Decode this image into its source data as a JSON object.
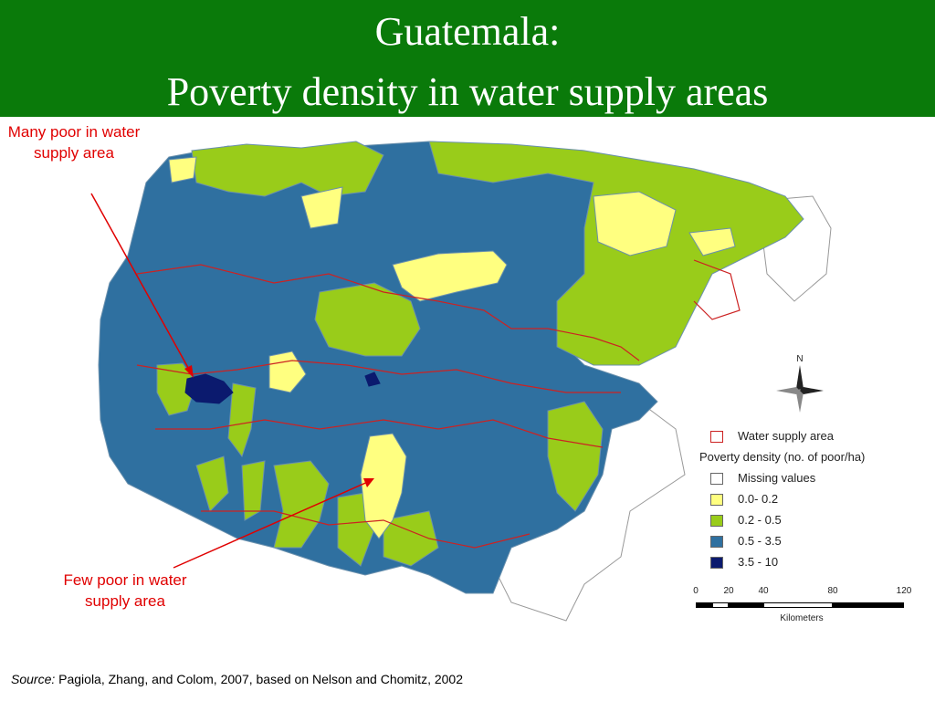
{
  "header": {
    "title_line1": "Guatemala:",
    "title_line2": "Poverty density in water supply areas",
    "background_color": "#0a7a0a"
  },
  "callouts": {
    "many_poor": "Many poor in water supply area",
    "few_poor": "Few poor in water supply area",
    "color": "#e00000"
  },
  "legend": {
    "water_supply_label": "Water supply area",
    "water_supply_color": "#cc2222",
    "density_heading": "Poverty density (no. of poor/ha)",
    "classes": [
      {
        "label": "Missing values",
        "color": "#ffffff"
      },
      {
        "label": "0.0- 0.2",
        "color": "#ffff80"
      },
      {
        "label": "0.2 - 0.5",
        "color": "#99cc1a"
      },
      {
        "label": "0.5 - 3.5",
        "color": "#2f70a0"
      },
      {
        "label": "3.5 - 10",
        "color": "#0b1a6e"
      }
    ]
  },
  "north_arrow": {
    "label": "N",
    "icon": "compass-rose-icon"
  },
  "scale_bar": {
    "ticks": [
      "0",
      "20",
      "40",
      "80",
      "120"
    ],
    "units": "Kilometers"
  },
  "source": {
    "label": "Source:",
    "text": "Pagiola, Zhang, and Colom, 2007, based on Nelson and Chomitz, 2002"
  }
}
